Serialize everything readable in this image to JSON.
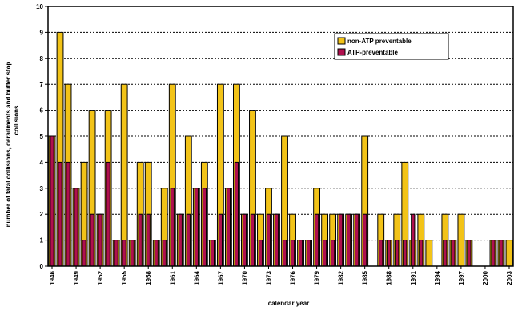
{
  "chart_data": {
    "type": "bar",
    "xlabel": "calendar year",
    "ylabel_line1": "number of fatal collisions, derailments and buffer stop",
    "ylabel_line2": "collisions",
    "ylim": [
      0,
      10
    ],
    "yticks": [
      0,
      1,
      2,
      3,
      4,
      5,
      6,
      7,
      8,
      9,
      10
    ],
    "grid": "horizontal dashed",
    "legend_position": "top-right",
    "categories": [
      1946,
      1947,
      1948,
      1949,
      1950,
      1951,
      1952,
      1953,
      1954,
      1955,
      1956,
      1957,
      1958,
      1959,
      1960,
      1961,
      1962,
      1963,
      1964,
      1965,
      1966,
      1967,
      1968,
      1969,
      1970,
      1971,
      1972,
      1973,
      1974,
      1975,
      1976,
      1977,
      1978,
      1979,
      1980,
      1981,
      1982,
      1983,
      1984,
      1985,
      1986,
      1987,
      1988,
      1989,
      1990,
      1991,
      1992,
      1993,
      1994,
      1995,
      1996,
      1997,
      1998,
      1999,
      2000,
      2001,
      2002,
      2003
    ],
    "xtick_labels": [
      "1946",
      "1949",
      "1952",
      "1955",
      "1958",
      "1961",
      "1964",
      "1967",
      "1970",
      "1973",
      "1976",
      "1979",
      "1982",
      "1985",
      "1988",
      "1991",
      "1994",
      "1997",
      "2000",
      "2003"
    ],
    "series": [
      {
        "name": "non-ATP preventable",
        "color": "#f2c318",
        "values": [
          5,
          9,
          7,
          3,
          4,
          6,
          2,
          6,
          1,
          7,
          1,
          4,
          4,
          1,
          3,
          7,
          2,
          5,
          3,
          4,
          1,
          7,
          3,
          7,
          2,
          6,
          2,
          3,
          2,
          5,
          2,
          1,
          1,
          3,
          2,
          2,
          2,
          2,
          2,
          5,
          0,
          2,
          1,
          2,
          4,
          1,
          2,
          1,
          0,
          2,
          1,
          2,
          1,
          0,
          0,
          1,
          1,
          1
        ]
      },
      {
        "name": "ATP-preventable",
        "color": "#b0104e",
        "values": [
          5,
          4,
          4,
          3,
          1,
          2,
          2,
          4,
          1,
          1,
          1,
          2,
          2,
          1,
          1,
          3,
          2,
          2,
          3,
          3,
          1,
          2,
          3,
          4,
          2,
          2,
          1,
          2,
          2,
          1,
          1,
          1,
          1,
          2,
          1,
          1,
          2,
          2,
          2,
          2,
          0,
          1,
          1,
          1,
          1,
          2,
          1,
          0,
          0,
          1,
          1,
          0,
          1,
          0,
          0,
          1,
          1,
          0
        ]
      }
    ]
  }
}
